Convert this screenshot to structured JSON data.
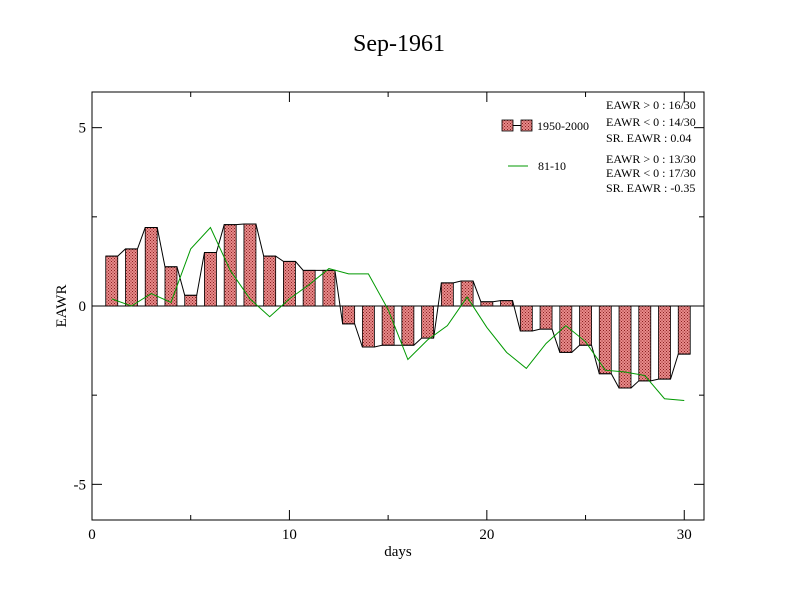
{
  "chart_data": {
    "type": "bar",
    "title": "Sep-1961",
    "xlabel": "days",
    "ylabel": "EAWR",
    "xlim": [
      0,
      31
    ],
    "ylim": [
      -6,
      6
    ],
    "x_ticks": [
      0,
      10,
      20,
      30
    ],
    "x_tick_labels": [
      "0",
      "10",
      "20",
      "30"
    ],
    "y_ticks": [
      -5,
      0,
      5
    ],
    "y_tick_labels": [
      "-5",
      "0",
      "5"
    ],
    "grid": false,
    "legend_position": "top-right",
    "x": [
      1,
      2,
      3,
      4,
      5,
      6,
      7,
      8,
      9,
      10,
      11,
      12,
      13,
      14,
      15,
      16,
      17,
      18,
      19,
      20,
      21,
      22,
      23,
      24,
      25,
      26,
      27,
      28,
      29,
      30
    ],
    "series": [
      {
        "name": "1950-2000",
        "type": "bar",
        "color": "#e06666",
        "values": [
          1.4,
          1.6,
          2.2,
          1.1,
          0.3,
          1.5,
          2.28,
          2.3,
          1.4,
          1.25,
          1.0,
          1.0,
          -0.5,
          -1.15,
          -1.1,
          -1.1,
          -0.9,
          0.65,
          0.7,
          0.12,
          0.15,
          -0.7,
          -0.65,
          -1.3,
          -1.1,
          -1.9,
          -2.3,
          -2.1,
          -2.05,
          -1.35
        ]
      },
      {
        "name": "81-10",
        "type": "line",
        "color": "#009900",
        "values": [
          0.2,
          0.0,
          0.35,
          0.1,
          1.6,
          2.2,
          1.0,
          0.2,
          -0.3,
          0.2,
          0.6,
          1.05,
          0.9,
          0.9,
          -0.1,
          -1.5,
          -0.95,
          -0.55,
          0.25,
          -0.6,
          -1.3,
          -1.75,
          -1.05,
          -0.55,
          -1.0,
          -1.8,
          -1.85,
          -1.95,
          -2.6,
          -2.65
        ]
      }
    ],
    "stats": {
      "group1": [
        "EAWR > 0 : 16/30",
        "EAWR < 0 : 14/30",
        "SR. EAWR :  0.04"
      ],
      "group2": [
        "EAWR > 0 : 13/30",
        "EAWR < 0 : 17/30",
        "SR. EAWR : -0.35"
      ]
    }
  }
}
